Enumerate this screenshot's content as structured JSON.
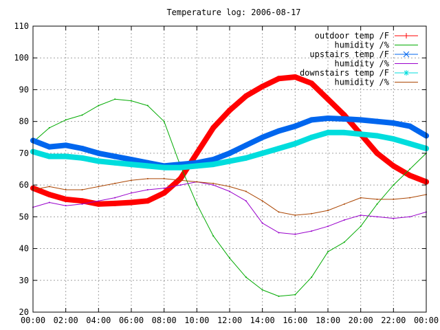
{
  "chart_data": {
    "type": "line",
    "title": "Temperature log: 2006-08-17",
    "xlabel": "",
    "ylabel": "",
    "x_ticks": [
      "00:00",
      "02:00",
      "04:00",
      "06:00",
      "08:00",
      "10:00",
      "12:00",
      "14:00",
      "16:00",
      "18:00",
      "20:00",
      "22:00",
      "00:00"
    ],
    "y_ticks": [
      "20",
      "30",
      "40",
      "50",
      "60",
      "70",
      "80",
      "90",
      "100",
      "110"
    ],
    "xlim_hours": [
      0,
      24
    ],
    "ylim": [
      20,
      110
    ],
    "grid": true,
    "legend_position": "top-right",
    "series": [
      {
        "name": "outdoor temp /F",
        "color": "#ff0000",
        "marker": "plus",
        "style": "thick-points",
        "x_hours": [
          0,
          1,
          2,
          3,
          4,
          5,
          6,
          7,
          8,
          9,
          10,
          11,
          12,
          13,
          14,
          15,
          16,
          17,
          18,
          19,
          20,
          21,
          22,
          23,
          24
        ],
        "values": [
          59,
          57,
          55.5,
          55,
          54,
          54.2,
          54.5,
          55,
          57.5,
          62,
          70,
          78,
          83.5,
          88,
          91,
          93.5,
          94,
          92,
          87,
          82,
          76,
          70,
          66,
          63,
          61
        ]
      },
      {
        "name": "humidity /%",
        "color": "#00aa00",
        "marker": "none",
        "style": "thin-line",
        "x_hours": [
          0,
          1,
          2,
          3,
          4,
          5,
          6,
          7,
          8,
          9,
          10,
          11,
          12,
          13,
          14,
          15,
          16,
          17,
          18,
          19,
          20,
          21,
          22,
          23,
          24
        ],
        "values": [
          73.5,
          78,
          80.5,
          82,
          85,
          87,
          86.5,
          85,
          80,
          66,
          54,
          44,
          37,
          31,
          27,
          25,
          25.5,
          31,
          39,
          42,
          47,
          54,
          60,
          65,
          70
        ]
      },
      {
        "name": "upstairs temp /F",
        "color": "#0066ee",
        "marker": "cross",
        "style": "thick-points",
        "x_hours": [
          0,
          1,
          2,
          3,
          4,
          5,
          6,
          7,
          8,
          9,
          10,
          11,
          12,
          13,
          14,
          15,
          16,
          17,
          18,
          19,
          20,
          21,
          22,
          23,
          24
        ],
        "values": [
          74,
          72,
          72.5,
          71.5,
          70,
          69,
          68,
          67,
          66,
          66.5,
          67,
          68,
          70,
          72.5,
          75,
          77,
          78.5,
          80.5,
          81,
          80.8,
          80.5,
          80,
          79.5,
          78.5,
          75.5
        ]
      },
      {
        "name": "humidity /%",
        "color": "#9900cc",
        "marker": "none",
        "style": "thin-line",
        "x_hours": [
          0,
          1,
          2,
          3,
          4,
          5,
          6,
          7,
          8,
          9,
          10,
          11,
          12,
          13,
          14,
          15,
          16,
          17,
          18,
          19,
          20,
          21,
          22,
          23,
          24
        ],
        "values": [
          53,
          54.5,
          53.5,
          54,
          55,
          56,
          57.5,
          58.5,
          59,
          60,
          61,
          60,
          58,
          55,
          48,
          45,
          44.5,
          45.5,
          47,
          49,
          50.5,
          50,
          49.5,
          50,
          51.5
        ]
      },
      {
        "name": "downstairs temp /F",
        "color": "#00dddd",
        "marker": "star",
        "style": "thick-points",
        "x_hours": [
          0,
          1,
          2,
          3,
          4,
          5,
          6,
          7,
          8,
          9,
          10,
          11,
          12,
          13,
          14,
          15,
          16,
          17,
          18,
          19,
          20,
          21,
          22,
          23,
          24
        ],
        "values": [
          70.5,
          69,
          69,
          68.5,
          67.5,
          67,
          66.5,
          66,
          65.5,
          65.5,
          66,
          66.5,
          67.5,
          68.5,
          70,
          71.5,
          73,
          75,
          76.5,
          76.5,
          76,
          75.5,
          74.5,
          73,
          71.5
        ]
      },
      {
        "name": "humidity /%",
        "color": "#aa4400",
        "marker": "none",
        "style": "thin-line",
        "x_hours": [
          0,
          1,
          2,
          3,
          4,
          5,
          6,
          7,
          8,
          9,
          10,
          11,
          12,
          13,
          14,
          15,
          16,
          17,
          18,
          19,
          20,
          21,
          22,
          23,
          24
        ],
        "values": [
          58.5,
          59.5,
          58.5,
          58.5,
          59.5,
          60.5,
          61.5,
          62,
          62,
          61.5,
          61,
          60.5,
          59.5,
          58,
          55,
          51.5,
          50.5,
          51,
          52,
          54,
          56,
          55.5,
          55.5,
          56,
          57
        ]
      }
    ]
  }
}
